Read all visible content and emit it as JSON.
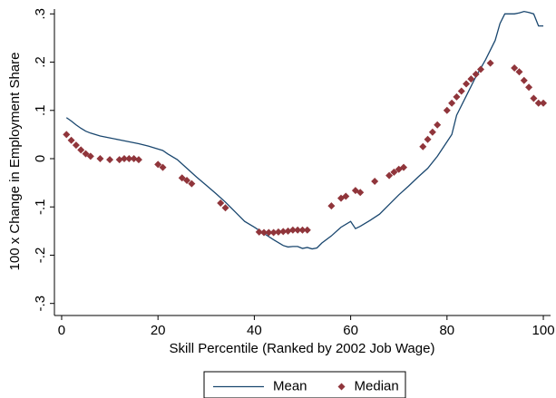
{
  "chart_data": {
    "type": "line",
    "x_label": "Skill Percentile (Ranked by 2002 Job Wage)",
    "y_label": "100 x Change in Employment Share",
    "xlim": [
      -1.5,
      101.5
    ],
    "ylim": [
      -0.325,
      0.31
    ],
    "xticks": [
      0,
      20,
      40,
      60,
      80,
      100
    ],
    "yticks": [
      {
        "value": -0.3,
        "label": "-.3"
      },
      {
        "value": -0.2,
        "label": "-.2"
      },
      {
        "value": -0.1,
        "label": "-.1"
      },
      0,
      {
        "value": 0.1,
        "label": ".1"
      },
      {
        "value": 0.2,
        "label": ".2"
      },
      {
        "value": 0.3,
        "label": ".3"
      }
    ],
    "grid": false,
    "legend": "bottom",
    "series": [
      {
        "name": "Mean",
        "mark": "line",
        "color": "#1a476f",
        "x": [
          1,
          2,
          3,
          4,
          5,
          6,
          8,
          10,
          12,
          14,
          16,
          18,
          20,
          21,
          22,
          24,
          26,
          28,
          30,
          32,
          34,
          36,
          38,
          40,
          42,
          44,
          46,
          47,
          48,
          49,
          50,
          51,
          52,
          53,
          54,
          56,
          58,
          60,
          61,
          62,
          64,
          66,
          68,
          70,
          72,
          74,
          76,
          78,
          80,
          81,
          82,
          84,
          86,
          88,
          90,
          91,
          92,
          93,
          94,
          95,
          96,
          97,
          98,
          99,
          100
        ],
        "values": [
          0.085,
          0.078,
          0.07,
          0.063,
          0.057,
          0.053,
          0.047,
          0.043,
          0.039,
          0.035,
          0.031,
          0.026,
          0.02,
          0.017,
          0.01,
          -0.002,
          -0.02,
          -0.038,
          -0.055,
          -0.072,
          -0.09,
          -0.11,
          -0.13,
          -0.142,
          -0.155,
          -0.168,
          -0.18,
          -0.183,
          -0.182,
          -0.182,
          -0.186,
          -0.184,
          -0.187,
          -0.185,
          -0.175,
          -0.16,
          -0.142,
          -0.13,
          -0.145,
          -0.14,
          -0.128,
          -0.115,
          -0.095,
          -0.075,
          -0.057,
          -0.038,
          -0.02,
          0.005,
          0.035,
          0.05,
          0.09,
          0.13,
          0.17,
          0.205,
          0.245,
          0.28,
          0.3,
          0.3,
          0.3,
          0.302,
          0.305,
          0.303,
          0.3,
          0.275,
          0.275
        ]
      },
      {
        "name": "Median",
        "mark": "diamond",
        "color": "#90353b",
        "x": [
          1,
          2,
          3,
          4,
          5,
          6,
          8,
          10,
          12,
          13,
          14,
          15,
          16,
          20,
          21,
          25,
          26,
          27,
          33,
          34,
          41,
          42,
          43,
          44,
          45,
          46,
          47,
          48,
          49,
          50,
          51,
          56,
          58,
          59,
          61,
          62,
          65,
          68,
          69,
          70,
          71,
          75,
          76,
          77,
          78,
          80,
          81,
          82,
          83,
          84,
          85,
          86,
          87,
          89,
          94,
          95,
          96,
          97,
          98,
          99,
          100
        ],
        "values": [
          0.05,
          0.038,
          0.028,
          0.018,
          0.01,
          0.005,
          0.0,
          -0.002,
          -0.002,
          0.0,
          0.0,
          0.0,
          -0.002,
          -0.012,
          -0.018,
          -0.04,
          -0.045,
          -0.052,
          -0.092,
          -0.102,
          -0.152,
          -0.153,
          -0.153,
          -0.153,
          -0.152,
          -0.151,
          -0.15,
          -0.148,
          -0.148,
          -0.148,
          -0.148,
          -0.098,
          -0.082,
          -0.078,
          -0.066,
          -0.07,
          -0.047,
          -0.035,
          -0.028,
          -0.022,
          -0.018,
          0.025,
          0.04,
          0.055,
          0.07,
          0.1,
          0.115,
          0.128,
          0.14,
          0.155,
          0.165,
          0.175,
          0.185,
          0.198,
          0.188,
          0.18,
          0.162,
          0.148,
          0.125,
          0.115,
          0.115
        ]
      }
    ]
  }
}
